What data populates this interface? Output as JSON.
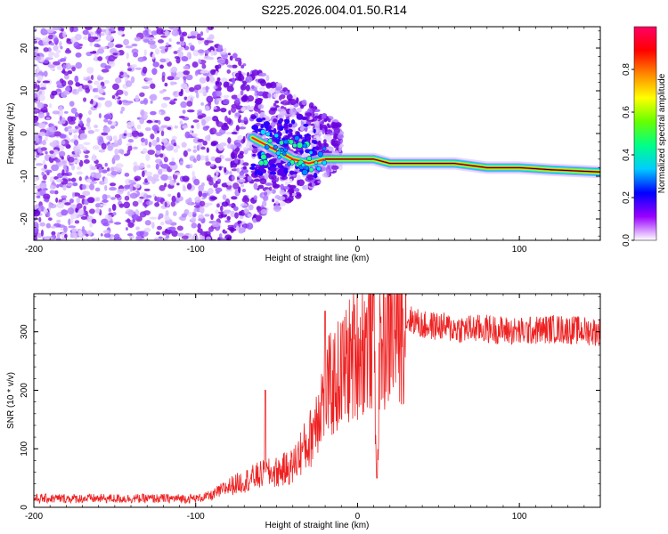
{
  "title": "S225.2026.004.01.50.R14",
  "chart_data": [
    {
      "type": "heatmap",
      "name": "spectrogram",
      "xlabel": "Height of straight line (km)",
      "ylabel": "Frequency (Hz)",
      "xlim": [
        -200,
        150
      ],
      "ylim": [
        -25,
        25
      ],
      "xticks": [
        -200,
        -100,
        0,
        100
      ],
      "yticks": [
        -20,
        -10,
        0,
        10,
        20
      ],
      "colorbar": {
        "label": "Normalized spectral amplitude",
        "range": [
          0.0,
          1.0
        ],
        "ticks": [
          0.0,
          0.2,
          0.4,
          0.6,
          0.8
        ],
        "colormap": [
          "#ffffff",
          "#9900ff",
          "#0000ff",
          "#00ccff",
          "#00ff88",
          "#66ff00",
          "#ffff00",
          "#ff8800",
          "#ff0000",
          "#ff0066"
        ]
      },
      "signal_track": {
        "x": [
          -65,
          -50,
          -40,
          -30,
          -20,
          0,
          10,
          20,
          40,
          60,
          80,
          100,
          120,
          150
        ],
        "y": [
          -1,
          -4,
          -6,
          -7,
          -6,
          -6,
          -6,
          -7,
          -7,
          -7,
          -8,
          -8,
          -8.5,
          -9
        ]
      },
      "noise_region_x": [
        -200,
        -30
      ]
    },
    {
      "type": "line",
      "name": "snr",
      "xlabel": "Height of straight line (km)",
      "ylabel": "SNR (10 * v/v)",
      "xlim": [
        -200,
        150
      ],
      "ylim": [
        0,
        365
      ],
      "xticks": [
        -200,
        -100,
        0,
        100
      ],
      "yticks": [
        0,
        100,
        200,
        300
      ],
      "color": "#ee2222",
      "envelope": {
        "x": [
          -200,
          -100,
          -90,
          -80,
          -70,
          -60,
          -50,
          -40,
          -35,
          -30,
          -25,
          -20,
          -15,
          -10,
          -5,
          0,
          5,
          10,
          12,
          14,
          20,
          25,
          30,
          35,
          40,
          50,
          60,
          80,
          100,
          120,
          150
        ],
        "y": [
          15,
          15,
          20,
          35,
          45,
          55,
          60,
          70,
          95,
          110,
          160,
          200,
          210,
          230,
          250,
          270,
          280,
          295,
          60,
          280,
          300,
          310,
          320,
          320,
          310,
          310,
          305,
          305,
          300,
          305,
          300
        ]
      },
      "spikes": [
        {
          "x": -57,
          "y": 200
        },
        {
          "x": -20,
          "y": 335
        },
        {
          "x": 10,
          "y": 365
        },
        {
          "x": 12,
          "y": 50
        }
      ]
    }
  ]
}
